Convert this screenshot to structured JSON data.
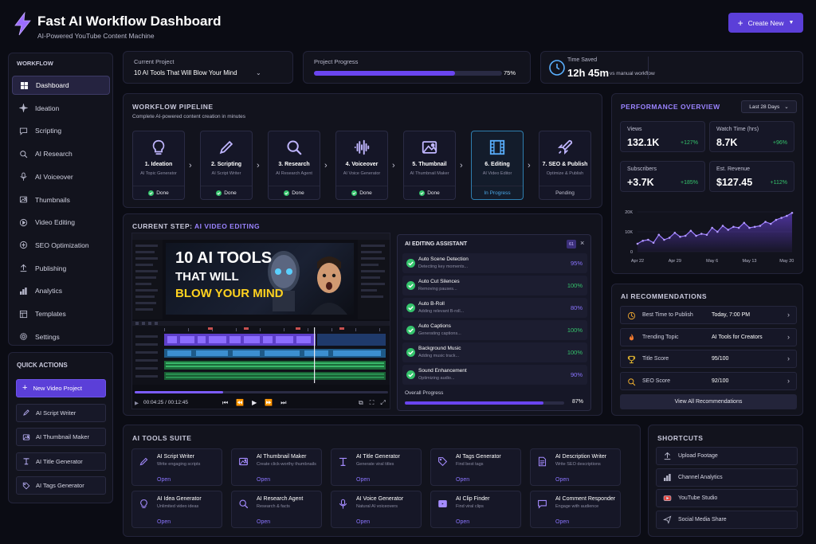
{
  "header": {
    "title": "Fast AI Workflow Dashboard",
    "subtitle": "AI-Powered YouTube Content Machine",
    "create_label": "Create New"
  },
  "sidebar": {
    "heading": "WORKFLOW",
    "items": [
      {
        "label": "Dashboard",
        "icon": "grid-icon",
        "active": true
      },
      {
        "label": "Ideation",
        "icon": "sparkle-icon"
      },
      {
        "label": "Scripting",
        "icon": "chat-icon"
      },
      {
        "label": "AI Research",
        "icon": "search-icon"
      },
      {
        "label": "AI Voiceover",
        "icon": "microphone-icon"
      },
      {
        "label": "Thumbnails",
        "icon": "image-icon"
      },
      {
        "label": "Video Editing",
        "icon": "play-icon"
      },
      {
        "label": "SEO Optimization",
        "icon": "seo-icon"
      },
      {
        "label": "Publishing",
        "icon": "upload-icon"
      },
      {
        "label": "Analytics",
        "icon": "bar-chart-icon"
      },
      {
        "label": "Templates",
        "icon": "template-icon"
      },
      {
        "label": "Settings",
        "icon": "gear-icon"
      }
    ]
  },
  "quick_actions": {
    "heading": "QUICK ACTIONS",
    "items": [
      {
        "label": "New Video Project",
        "primary": true
      },
      {
        "label": "AI Script Writer"
      },
      {
        "label": "AI Thumbnail Maker"
      },
      {
        "label": "AI Title Generator"
      },
      {
        "label": "AI Tags Generator"
      }
    ]
  },
  "project": {
    "label": "Current Project",
    "value": "10 AI Tools That Will Blow Your Mind"
  },
  "progress": {
    "label": "Project Progress",
    "value": 75,
    "text": "75%"
  },
  "time_saved": {
    "label": "Time Saved",
    "value": "12h 45m",
    "note": "vs manual workflow"
  },
  "pipeline": {
    "title": "WORKFLOW PIPELINE",
    "subtitle": "Complete AI-powered content creation in minutes",
    "steps": [
      {
        "name": "1. Ideation",
        "sub": "AI Topic Generator",
        "status": "Done",
        "icon": "lightbulb-icon"
      },
      {
        "name": "2. Scripting",
        "sub": "AI Script Writer",
        "status": "Done",
        "icon": "pencil-icon"
      },
      {
        "name": "3. Research",
        "sub": "AI Research Agent",
        "status": "Done",
        "icon": "search-icon"
      },
      {
        "name": "4. Voiceover",
        "sub": "AI Voice Generator",
        "status": "Done",
        "icon": "waveform-icon"
      },
      {
        "name": "5. Thumbnail",
        "sub": "AI Thumbnail Maker",
        "status": "Done",
        "icon": "image-icon"
      },
      {
        "name": "6. Editing",
        "sub": "AI Video Editor",
        "status": "In Progress",
        "icon": "film-icon"
      },
      {
        "name": "7. SEO & Publish",
        "sub": "Optimize & Publish",
        "status": "Pending",
        "icon": "rocket-icon"
      }
    ]
  },
  "current_step": {
    "prefix": "CURRENT STEP:",
    "name": "AI VIDEO EDITING",
    "thumb_line1": "10 AI TOOLS",
    "thumb_line2": "THAT WILL",
    "thumb_line3": "BLOW YOUR MIND",
    "time_current": "00:04:25",
    "time_total": "00:12:45",
    "playback": 0.35
  },
  "assistant": {
    "title": "AI EDITING ASSISTANT",
    "badge": "61",
    "tasks": [
      {
        "name": "Auto Scene Detection",
        "sub": "Detecting key moments...",
        "pct": "95%",
        "color": "#8a74ff"
      },
      {
        "name": "Auto Cut Silences",
        "sub": "Removing pauses...",
        "pct": "100%",
        "color": "#35c46c"
      },
      {
        "name": "Auto B-Roll",
        "sub": "Adding relevant B-roll...",
        "pct": "80%",
        "color": "#8a74ff"
      },
      {
        "name": "Auto Captions",
        "sub": "Generating captions...",
        "pct": "100%",
        "color": "#35c46c"
      },
      {
        "name": "Background Music",
        "sub": "Adding music track...",
        "pct": "100%",
        "color": "#35c46c"
      },
      {
        "name": "Sound Enhancement",
        "sub": "Optimizing audio...",
        "pct": "90%",
        "color": "#8a74ff"
      }
    ],
    "overall_label": "Overall Progress",
    "overall_value": 87,
    "overall_text": "87%"
  },
  "performance": {
    "title": "PERFORMANCE OVERVIEW",
    "range": "Last 28 Days",
    "stats": [
      {
        "label": "Views",
        "value": "132.1K",
        "change": "+127%"
      },
      {
        "label": "Watch Time (hrs)",
        "value": "8.7K",
        "change": "+96%"
      },
      {
        "label": "Subscribers",
        "value": "+3.7K",
        "change": "+185%"
      },
      {
        "label": "Est. Revenue",
        "value": "$127.45",
        "change": "+112%"
      }
    ]
  },
  "chart_data": {
    "type": "area",
    "x": [
      "Apr 22",
      "Apr 23",
      "Apr 24",
      "Apr 25",
      "Apr 26",
      "Apr 27",
      "Apr 28",
      "Apr 29",
      "Apr 30",
      "May 1",
      "May 2",
      "May 3",
      "May 4",
      "May 5",
      "May 6",
      "May 7",
      "May 8",
      "May 9",
      "May 10",
      "May 11",
      "May 12",
      "May 13",
      "May 14",
      "May 15",
      "May 16",
      "May 17",
      "May 18",
      "May 19",
      "May 20",
      "May 21"
    ],
    "values": [
      4000,
      5500,
      6000,
      4500,
      8500,
      6000,
      7000,
      9500,
      7500,
      8000,
      10500,
      8000,
      9000,
      8500,
      12000,
      10000,
      13000,
      11000,
      12500,
      12000,
      14500,
      12000,
      12500,
      13000,
      15000,
      14000,
      16000,
      17000,
      18000,
      19500
    ],
    "tick_labels": [
      "Apr 22",
      "Apr 29",
      "May 6",
      "May 13",
      "May 20"
    ],
    "y_ticks": [
      "0",
      "10K",
      "20K"
    ],
    "ylim": [
      0,
      20000
    ],
    "color": "#7c4dff"
  },
  "recommendations": {
    "title": "AI RECOMMENDATIONS",
    "items": [
      {
        "label": "Best Time to Publish",
        "value": "Today, 7:00 PM",
        "icon": "clock-icon"
      },
      {
        "label": "Trending Topic",
        "value": "AI Tools for Creators",
        "icon": "fire-icon"
      },
      {
        "label": "Title Score",
        "value": "95/100",
        "icon": "trophy-icon"
      },
      {
        "label": "SEO Score",
        "value": "92/100",
        "icon": "search-icon"
      }
    ],
    "view_all": "View All Recommendations"
  },
  "tools": {
    "title": "AI TOOLS SUITE",
    "open_label": "Open",
    "items": [
      {
        "name": "AI Script Writer",
        "sub": "Write engaging scripts",
        "icon": "pencil-icon"
      },
      {
        "name": "AI Thumbnail Maker",
        "sub": "Create click-worthy thumbnails",
        "icon": "image-icon"
      },
      {
        "name": "AI Title Generator",
        "sub": "Generate viral titles",
        "icon": "text-icon"
      },
      {
        "name": "AI Tags Generator",
        "sub": "Find best tags",
        "icon": "tag-icon"
      },
      {
        "name": "AI Description Writer",
        "sub": "Write SEO descriptions",
        "icon": "document-icon"
      },
      {
        "name": "AI Idea Generator",
        "sub": "Unlimited video ideas",
        "icon": "lightbulb-icon"
      },
      {
        "name": "AI Research Agent",
        "sub": "Research & facts",
        "icon": "search-icon"
      },
      {
        "name": "AI Voice Generator",
        "sub": "Natural AI voiceovers",
        "icon": "microphone-icon"
      },
      {
        "name": "AI Clip Finder",
        "sub": "Find viral clips",
        "icon": "clip-icon"
      },
      {
        "name": "AI Comment Responder",
        "sub": "Engage with audience",
        "icon": "chat-icon"
      }
    ]
  },
  "shortcuts": {
    "title": "SHORTCUTS",
    "items": [
      {
        "label": "Upload Footage",
        "icon": "upload-icon"
      },
      {
        "label": "Channel Analytics",
        "icon": "bar-chart-icon"
      },
      {
        "label": "YouTube Studio",
        "icon": "youtube-icon"
      },
      {
        "label": "Social Media Share",
        "icon": "share-icon"
      }
    ]
  }
}
